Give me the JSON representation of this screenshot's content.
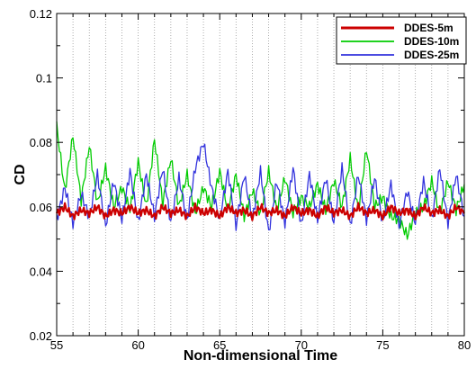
{
  "chart_data": {
    "type": "line",
    "title": "",
    "xlabel": "Non-dimensional Time",
    "ylabel": "CD",
    "xlim": [
      55,
      80
    ],
    "ylim": [
      0.02,
      0.12
    ],
    "x_ticks": [
      55,
      60,
      65,
      70,
      75,
      80
    ],
    "x_tick_labels": [
      "55",
      "60",
      "65",
      "70",
      "75",
      "80"
    ],
    "y_ticks": [
      0.02,
      0.04,
      0.06,
      0.08,
      0.1,
      0.12
    ],
    "y_tick_labels": [
      "0.02",
      "0.04",
      "0.06",
      "0.08",
      "0.1",
      "0.12"
    ],
    "grid": {
      "vertical_dotted_every": 1,
      "horizontal": false
    },
    "legend_position": "top-right",
    "series": [
      {
        "name": "DDES-5m",
        "color": "#cc0000",
        "x": [
          55,
          55.5,
          56,
          56.5,
          57,
          57.5,
          58,
          58.5,
          59,
          59.5,
          60,
          60.5,
          61,
          61.5,
          62,
          62.5,
          63,
          63.5,
          64,
          64.5,
          65,
          65.5,
          66,
          66.5,
          67,
          67.5,
          68,
          68.5,
          69,
          69.5,
          70,
          70.5,
          71,
          71.5,
          72,
          72.5,
          73,
          73.5,
          74,
          74.5,
          75,
          75.5,
          76,
          76.5,
          77,
          77.5,
          78,
          78.5,
          79,
          79.5,
          80
        ],
        "y": [
          0.058,
          0.06,
          0.057,
          0.059,
          0.058,
          0.06,
          0.057,
          0.059,
          0.058,
          0.06,
          0.058,
          0.059,
          0.057,
          0.06,
          0.058,
          0.059,
          0.057,
          0.06,
          0.058,
          0.059,
          0.057,
          0.06,
          0.058,
          0.059,
          0.057,
          0.06,
          0.058,
          0.059,
          0.057,
          0.06,
          0.058,
          0.059,
          0.057,
          0.06,
          0.058,
          0.059,
          0.057,
          0.06,
          0.058,
          0.059,
          0.057,
          0.06,
          0.058,
          0.059,
          0.057,
          0.06,
          0.058,
          0.059,
          0.057,
          0.06,
          0.058
        ]
      },
      {
        "name": "DDES-10m",
        "color": "#00cc00",
        "x": [
          55,
          55.5,
          56,
          56.5,
          57,
          57.5,
          58,
          58.5,
          59,
          59.5,
          60,
          60.5,
          61,
          61.5,
          62,
          62.5,
          63,
          63.5,
          64,
          64.5,
          65,
          65.5,
          66,
          66.5,
          67,
          67.5,
          68,
          68.5,
          69,
          69.5,
          70,
          70.5,
          71,
          71.5,
          72,
          72.5,
          73,
          73.5,
          74,
          74.5,
          75,
          75.5,
          76,
          76.5,
          77,
          77.5,
          78,
          78.5,
          79,
          79.5,
          80
        ],
        "y": [
          0.085,
          0.065,
          0.082,
          0.062,
          0.079,
          0.061,
          0.072,
          0.06,
          0.066,
          0.059,
          0.074,
          0.06,
          0.081,
          0.061,
          0.075,
          0.06,
          0.07,
          0.058,
          0.066,
          0.06,
          0.071,
          0.059,
          0.07,
          0.057,
          0.065,
          0.058,
          0.071,
          0.059,
          0.069,
          0.058,
          0.063,
          0.06,
          0.067,
          0.059,
          0.068,
          0.06,
          0.075,
          0.059,
          0.078,
          0.06,
          0.063,
          0.057,
          0.056,
          0.051,
          0.058,
          0.06,
          0.068,
          0.058,
          0.068,
          0.059,
          0.067
        ]
      },
      {
        "name": "DDES-25m",
        "color": "#3333dd",
        "x": [
          55,
          55.5,
          56,
          56.5,
          57,
          57.5,
          58,
          58.5,
          59,
          59.5,
          60,
          60.5,
          61,
          61.5,
          62,
          62.5,
          63,
          63.5,
          64,
          64.5,
          65,
          65.5,
          66,
          66.5,
          67,
          67.5,
          68,
          68.5,
          69,
          69.5,
          70,
          70.5,
          71,
          71.5,
          72,
          72.5,
          73,
          73.5,
          74,
          74.5,
          75,
          75.5,
          76,
          76.5,
          77,
          77.5,
          78,
          78.5,
          79,
          79.5,
          80
        ],
        "y": [
          0.056,
          0.066,
          0.055,
          0.064,
          0.057,
          0.07,
          0.054,
          0.068,
          0.056,
          0.071,
          0.055,
          0.07,
          0.057,
          0.072,
          0.055,
          0.069,
          0.056,
          0.072,
          0.08,
          0.066,
          0.056,
          0.071,
          0.054,
          0.07,
          0.056,
          0.071,
          0.052,
          0.068,
          0.055,
          0.072,
          0.054,
          0.07,
          0.056,
          0.069,
          0.055,
          0.072,
          0.054,
          0.07,
          0.056,
          0.069,
          0.055,
          0.067,
          0.054,
          0.065,
          0.055,
          0.068,
          0.056,
          0.072,
          0.055,
          0.07,
          0.057
        ]
      }
    ]
  }
}
